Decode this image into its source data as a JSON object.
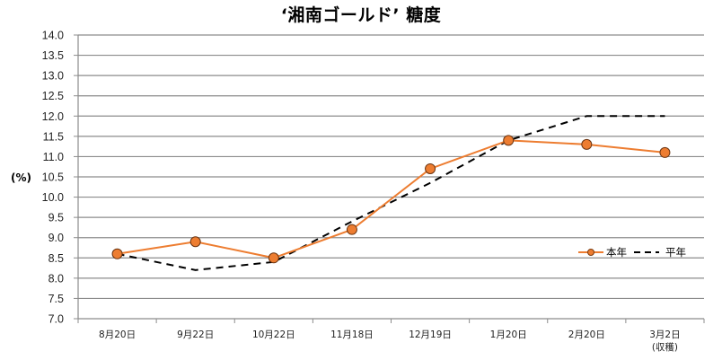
{
  "chart_data": {
    "type": "line",
    "title": "‘湘南ゴールド’ 糖度",
    "xlabel": "",
    "ylabel": "(%)",
    "ylim": [
      7.0,
      14.0
    ],
    "ytick_step": 0.5,
    "yticks": [
      "7.0",
      "7.5",
      "8.0",
      "8.5",
      "9.0",
      "9.5",
      "10.0",
      "10.5",
      "11.0",
      "11.5",
      "12.0",
      "12.5",
      "13.0",
      "13.5",
      "14.0"
    ],
    "grid": true,
    "legend_position": "right-middle",
    "categories": [
      "8月20日",
      "9月22日",
      "10月22日",
      "11月18日",
      "12月19日",
      "1月20日",
      "2月20日",
      "3月2日\n(収穫)"
    ],
    "category_lines": [
      [
        "8月20日"
      ],
      [
        "9月22日"
      ],
      [
        "10月22日"
      ],
      [
        "11月18日"
      ],
      [
        "12月19日"
      ],
      [
        "1月20日"
      ],
      [
        "2月20日"
      ],
      [
        "3月2日",
        "(収穫)"
      ]
    ],
    "series": [
      {
        "name": "本年",
        "color": "#ED7D31",
        "style": "solid-with-markers",
        "values": [
          8.6,
          8.9,
          8.5,
          9.2,
          10.7,
          11.4,
          11.3,
          11.1
        ]
      },
      {
        "name": "平年",
        "color": "#000000",
        "style": "dashed",
        "values": [
          8.6,
          8.2,
          8.4,
          9.4,
          10.35,
          11.4,
          12.0,
          12.0
        ]
      }
    ]
  }
}
